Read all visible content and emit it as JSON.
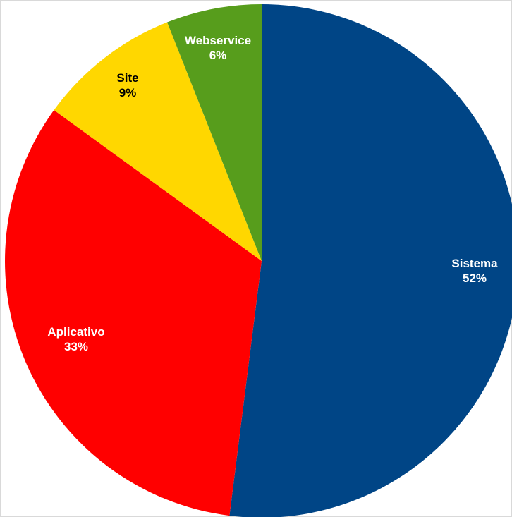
{
  "chart_data": {
    "type": "pie",
    "title": "",
    "legend": "none",
    "start_angle_deg": 0,
    "direction": "clockwise",
    "slices": [
      {
        "label": "Sistema",
        "value": 52,
        "display": "52%",
        "color": "#004586",
        "label_color": "#ffffff"
      },
      {
        "label": "Aplicativo",
        "value": 33,
        "display": "33%",
        "color": "#ff0000",
        "label_color": "#ffffff"
      },
      {
        "label": "Site",
        "value": 9,
        "display": "9%",
        "color": "#ffd700",
        "label_color": "#000000"
      },
      {
        "label": "Webservice",
        "value": 6,
        "display": "6%",
        "color": "#579d1c",
        "label_color": "#ffffff"
      }
    ]
  }
}
